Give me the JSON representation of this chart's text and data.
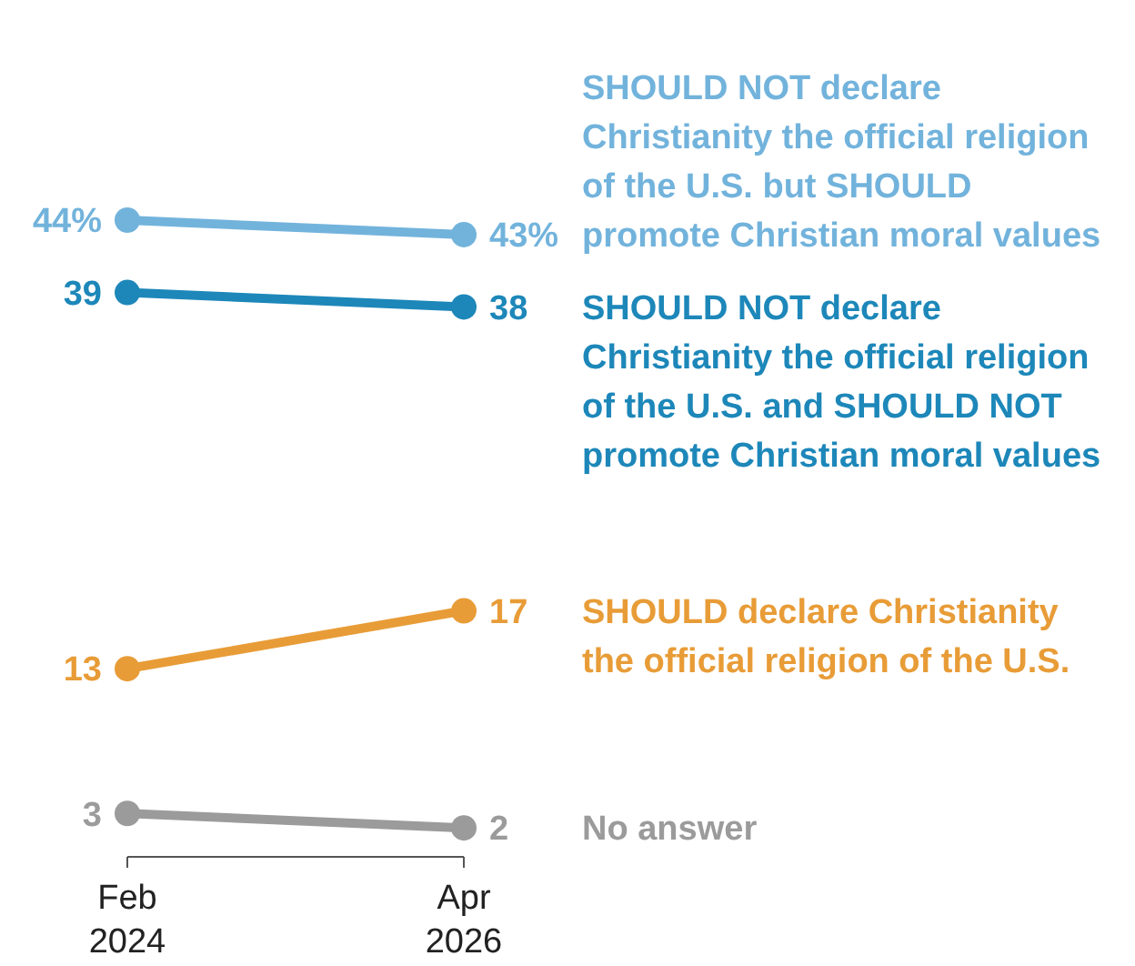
{
  "chart_data": {
    "type": "line",
    "categories": [
      "Feb 2024",
      "Apr 2026"
    ],
    "marker": "circle",
    "tick_labels": "x",
    "series": [
      {
        "name": "SHOULD NOT declare Christianity the official religion of the U.S. but SHOULD promote Christian moral values",
        "color": "#72b3dc",
        "values": [
          44,
          43
        ],
        "value_labels": [
          "44%",
          "43%"
        ]
      },
      {
        "name": "SHOULD NOT declare Christianity the official religion of the U.S. and SHOULD NOT promote Christian moral values",
        "color": "#1d87b9",
        "values": [
          39,
          38
        ],
        "value_labels": [
          "39",
          "38"
        ]
      },
      {
        "name": "SHOULD declare Christianity the official religion of the U.S.",
        "color": "#e89c37",
        "values": [
          13,
          17
        ],
        "value_labels": [
          "13",
          "17"
        ]
      },
      {
        "name": "No answer",
        "color": "#9b9b9b",
        "values": [
          3,
          2
        ],
        "value_labels": [
          "3",
          "2"
        ]
      }
    ]
  }
}
